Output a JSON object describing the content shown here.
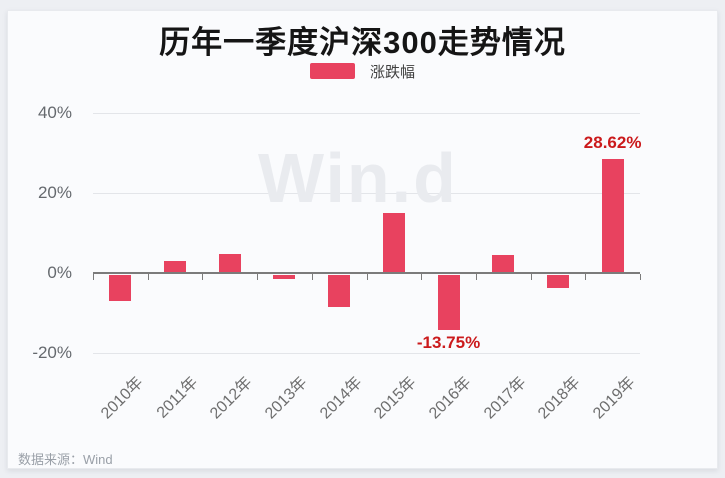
{
  "page": {
    "watermark": "Win.d",
    "source_note": "数据来源：Wind"
  },
  "chart_data": {
    "type": "bar",
    "title": "历年一季度沪深300走势情况",
    "legend": [
      "涨跌幅"
    ],
    "legend_position": "top",
    "categories": [
      "2010年",
      "2011年",
      "2012年",
      "2013年",
      "2014年",
      "2015年",
      "2016年",
      "2017年",
      "2018年",
      "2019年"
    ],
    "series": [
      {
        "name": "涨跌幅",
        "values": [
          -6.5,
          3.0,
          4.8,
          -1.1,
          -8.0,
          15.0,
          -13.75,
          4.4,
          -3.25,
          28.62
        ]
      }
    ],
    "data_labels": [
      {
        "category": "2016年",
        "text": "-13.75%"
      },
      {
        "category": "2019年",
        "text": "28.62%"
      }
    ],
    "y_axis": {
      "ticks": [
        {
          "label": "40%",
          "value": 40
        },
        {
          "label": "20%",
          "value": 20
        },
        {
          "label": "0%",
          "value": 0
        },
        {
          "label": "-20%",
          "value": -20
        }
      ],
      "range": [
        -25,
        45
      ],
      "grid": true
    },
    "colors": {
      "bar": "#e8425f",
      "data_label": "#cb1a1c",
      "axis_line": "#7b7b7b",
      "grid_line": "#e3e5e9",
      "axis_text": "#65696e",
      "x_axis_text": "#6e6e6e",
      "watermark": "#e9ebef"
    }
  }
}
